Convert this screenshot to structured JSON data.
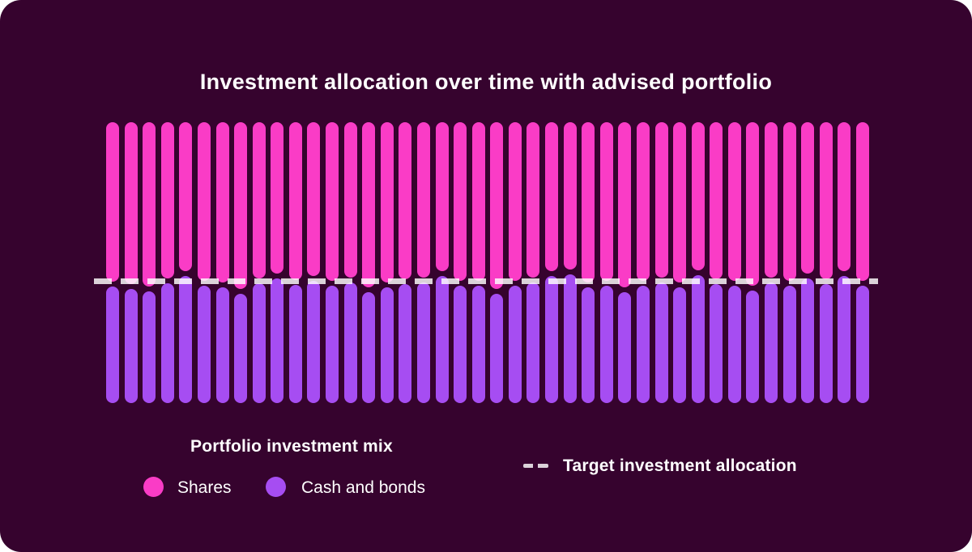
{
  "title": "Investment allocation over time with advised portfolio",
  "colors": {
    "background": "#36032E",
    "shares": "#FA3CC6",
    "cash_and_bonds": "#A64DF2",
    "target_line": "rgba(255,255,255,0.82)",
    "text": "#FFFFFF"
  },
  "legend": {
    "mix_title": "Portfolio investment mix",
    "items": [
      {
        "label": "Shares",
        "color": "#FA3CC6"
      },
      {
        "label": "Cash and bonds",
        "color": "#A64DF2"
      }
    ],
    "target": {
      "label": "Target investment allocation"
    }
  },
  "chart_data": {
    "type": "bar",
    "stacked": true,
    "orientation": "vertical",
    "x_count": 42,
    "x_tick_labels": "none shown",
    "y_tick_labels": "none shown",
    "ylim": [
      0,
      100
    ],
    "units": "percent of portfolio",
    "grid": false,
    "axes_shown": false,
    "legend_position": "bottom",
    "title": "Investment allocation over time with advised portfolio",
    "series": [
      {
        "name": "Shares",
        "color": "#FA3CC6",
        "values": [
          57.6,
          58.5,
          59.4,
          56.5,
          53.9,
          57.3,
          57.9,
          60.2,
          56.5,
          54.8,
          57.1,
          55.6,
          57.3,
          56.2,
          59.7,
          57.9,
          56.8,
          56.2,
          53.9,
          57.3,
          57.3,
          60.2,
          57.3,
          56.2,
          53.9,
          53.3,
          57.9,
          57.3,
          59.7,
          57.3,
          56.2,
          57.9,
          53.6,
          56.8,
          57.3,
          59.1,
          56.2,
          57.3,
          54.8,
          56.8,
          53.9,
          57.3
        ]
      },
      {
        "name": "Cash and bonds",
        "color": "#A64DF2",
        "values": [
          42.4,
          41.5,
          40.6,
          43.5,
          46.1,
          42.7,
          42.1,
          39.8,
          43.5,
          45.2,
          42.9,
          44.4,
          42.7,
          43.8,
          40.3,
          42.1,
          43.2,
          43.8,
          46.1,
          42.7,
          42.7,
          39.8,
          42.7,
          43.8,
          46.1,
          46.7,
          42.1,
          42.7,
          40.3,
          42.7,
          43.8,
          42.1,
          46.4,
          43.2,
          42.7,
          40.9,
          43.8,
          42.7,
          45.2,
          43.2,
          46.1,
          42.7
        ]
      }
    ],
    "target_line": {
      "label": "Target investment allocation",
      "shares_target_pct": 56.8,
      "style": "dashed"
    }
  }
}
